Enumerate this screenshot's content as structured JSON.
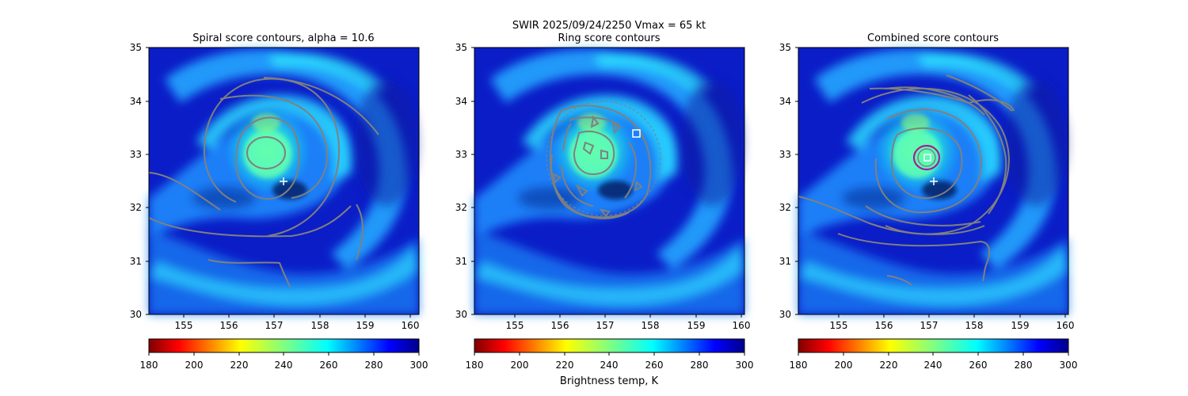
{
  "suptitle_line1": "SWIR  2025/09/24/2250    Vmax = 65 kt",
  "colorbar_label": "Brightness temp, K",
  "colors": {
    "contour": "#808080",
    "combined_ring": "#a020a0",
    "marker": "#ffffff",
    "background_field": "#0a1fd8"
  },
  "chart_data": [
    {
      "type": "heatmap",
      "title": "Spiral score contours, alpha = 10.6",
      "xlim": [
        154.1,
        160.1
      ],
      "ylim": [
        30,
        35
      ],
      "xticks": [
        155,
        156,
        157,
        158,
        159,
        160
      ],
      "yticks": [
        30,
        31,
        32,
        33,
        34,
        35
      ],
      "colormap": "jet_r",
      "colorbar": {
        "range": [
          180,
          300
        ],
        "ticks": [
          180,
          200,
          220,
          240,
          260,
          280,
          300
        ]
      },
      "markers": [
        {
          "shape": "plus",
          "x": 157.1,
          "y": 32.5
        }
      ]
    },
    {
      "type": "heatmap",
      "title": "Ring score contours",
      "xlim": [
        154.1,
        160.1
      ],
      "ylim": [
        30,
        35
      ],
      "xticks": [
        155,
        156,
        157,
        158,
        159,
        160
      ],
      "yticks": [
        30,
        31,
        32,
        33,
        34,
        35
      ],
      "colormap": "jet_r",
      "colorbar": {
        "range": [
          180,
          300
        ],
        "ticks": [
          180,
          200,
          220,
          240,
          260,
          280,
          300
        ]
      },
      "markers": [
        {
          "shape": "square",
          "x": 157.7,
          "y": 33.4
        }
      ]
    },
    {
      "type": "heatmap",
      "title": "Combined score contours",
      "xlim": [
        154.1,
        160.1
      ],
      "ylim": [
        30,
        35
      ],
      "xticks": [
        155,
        156,
        157,
        158,
        159,
        160
      ],
      "yticks": [
        30,
        31,
        32,
        33,
        34,
        35
      ],
      "colormap": "jet_r",
      "colorbar": {
        "range": [
          180,
          300
        ],
        "ticks": [
          180,
          200,
          220,
          240,
          260,
          280,
          300
        ]
      },
      "markers": [
        {
          "shape": "plus",
          "x": 157.1,
          "y": 32.5
        },
        {
          "shape": "square",
          "x": 156.9,
          "y": 32.95
        }
      ]
    }
  ]
}
